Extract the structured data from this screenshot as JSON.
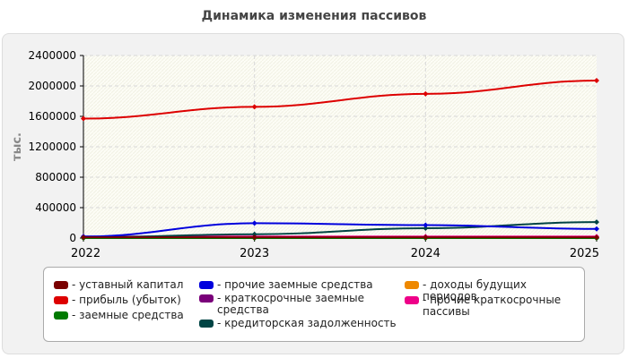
{
  "chart_data": {
    "type": "line",
    "title": "Динамика изменения пассивов",
    "ylabel": "тыс.",
    "xlabel": "",
    "x": [
      "2022",
      "2023",
      "2024",
      "2025"
    ],
    "ylim": [
      0,
      2400000
    ],
    "yticks": [
      "0",
      "400000",
      "800000",
      "1200000",
      "1600000",
      "2000000",
      "2400000"
    ],
    "grid": true,
    "legend_position": "bottom",
    "series": [
      {
        "name": "уставный капитал",
        "color": "#7a0000",
        "values": [
          10000,
          10000,
          10000,
          10000
        ]
      },
      {
        "name": "прибыль (убыток)",
        "color": "#dd0000",
        "values": [
          1570000,
          1725000,
          1895000,
          2070000
        ]
      },
      {
        "name": "заемные средства",
        "color": "#007a00",
        "values": [
          0,
          0,
          0,
          0
        ]
      },
      {
        "name": "прочие заемные средства",
        "color": "#0000dd",
        "values": [
          20000,
          195000,
          170000,
          120000
        ]
      },
      {
        "name": "краткосрочные заемные средства",
        "color": "#7a007a",
        "values": [
          0,
          0,
          0,
          0
        ]
      },
      {
        "name": "кредиторская задолженность",
        "color": "#004444",
        "values": [
          10000,
          50000,
          130000,
          210000
        ]
      },
      {
        "name": "доходы будущих периодов",
        "color": "#ee8800",
        "values": [
          0,
          0,
          0,
          0
        ]
      },
      {
        "name": "прочие краткосрочные пассивы",
        "color": "#ee0088",
        "values": [
          20000,
          20000,
          20000,
          20000
        ]
      }
    ]
  }
}
